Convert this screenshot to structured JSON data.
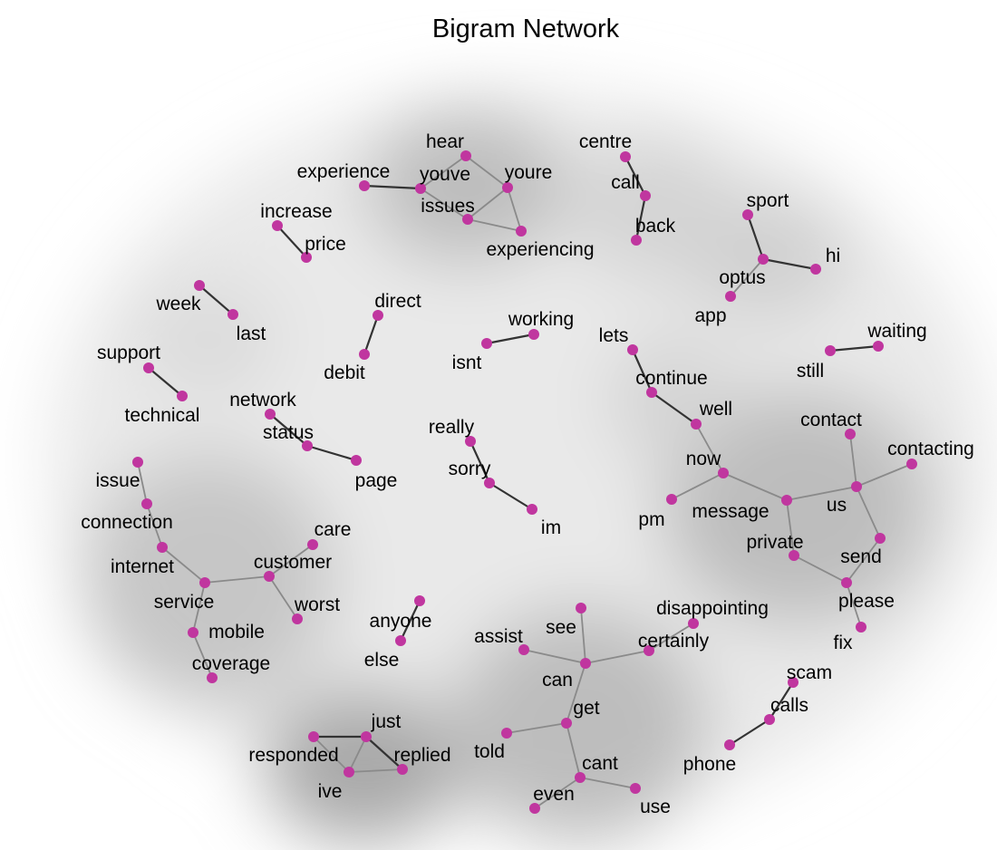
{
  "title": "Bigram Network",
  "colors": {
    "node": "#C0369F",
    "edge_strong": "#333333",
    "edge_weak": "#8a8a8a",
    "background": "#ffffff",
    "halo": "#d8d8d8"
  },
  "nodes": [
    "hear",
    "experience",
    "youve",
    "youre",
    "issues",
    "experiencing",
    "centre",
    "call",
    "back",
    "increase",
    "price",
    "sport",
    "optus",
    "hi",
    "app",
    "week",
    "last",
    "direct",
    "debit",
    "working",
    "isnt",
    "support",
    "technical",
    "network",
    "status",
    "page",
    "waiting",
    "still",
    "lets",
    "continue",
    "well",
    "now",
    "message",
    "pm",
    "us",
    "contact",
    "contacting",
    "private",
    "send",
    "please",
    "fix",
    "really",
    "sorry",
    "im",
    "issue",
    "connection",
    "internet",
    "service",
    "customer",
    "care",
    "worst",
    "mobile",
    "coverage",
    "anyone",
    "else",
    "disappointing",
    "certainly",
    "see",
    "assist",
    "can",
    "get",
    "told",
    "cant",
    "even",
    "use",
    "scam",
    "calls",
    "phone",
    "just",
    "responded",
    "replied",
    "ive"
  ],
  "edges": [
    [
      "experience",
      "youve"
    ],
    [
      "youve",
      "hear"
    ],
    [
      "hear",
      "youre"
    ],
    [
      "youve",
      "issues"
    ],
    [
      "youre",
      "issues"
    ],
    [
      "issues",
      "experiencing"
    ],
    [
      "youre",
      "experiencing"
    ],
    [
      "centre",
      "call"
    ],
    [
      "call",
      "back"
    ],
    [
      "increase",
      "price"
    ],
    [
      "sport",
      "optus"
    ],
    [
      "optus",
      "hi"
    ],
    [
      "optus",
      "app"
    ],
    [
      "week",
      "last"
    ],
    [
      "direct",
      "debit"
    ],
    [
      "isnt",
      "working"
    ],
    [
      "support",
      "technical"
    ],
    [
      "network",
      "status"
    ],
    [
      "status",
      "page"
    ],
    [
      "still",
      "waiting"
    ],
    [
      "lets",
      "continue"
    ],
    [
      "continue",
      "well"
    ],
    [
      "well",
      "now"
    ],
    [
      "now",
      "message"
    ],
    [
      "now",
      "pm"
    ],
    [
      "message",
      "us"
    ],
    [
      "contact",
      "us"
    ],
    [
      "us",
      "contacting"
    ],
    [
      "message",
      "private"
    ],
    [
      "us",
      "send"
    ],
    [
      "private",
      "please"
    ],
    [
      "send",
      "please"
    ],
    [
      "please",
      "fix"
    ],
    [
      "really",
      "sorry"
    ],
    [
      "sorry",
      "im"
    ],
    [
      "issue",
      "connection"
    ],
    [
      "connection",
      "internet"
    ],
    [
      "internet",
      "service"
    ],
    [
      "service",
      "customer"
    ],
    [
      "customer",
      "care"
    ],
    [
      "customer",
      "worst"
    ],
    [
      "service",
      "mobile"
    ],
    [
      "mobile",
      "coverage"
    ],
    [
      "anyone",
      "else"
    ],
    [
      "certainly",
      "disappointing"
    ],
    [
      "see",
      "can"
    ],
    [
      "assist",
      "can"
    ],
    [
      "can",
      "certainly"
    ],
    [
      "can",
      "get"
    ],
    [
      "get",
      "told"
    ],
    [
      "get",
      "cant"
    ],
    [
      "cant",
      "even"
    ],
    [
      "cant",
      "use"
    ],
    [
      "scam",
      "calls"
    ],
    [
      "calls",
      "phone"
    ],
    [
      "responded",
      "just"
    ],
    [
      "just",
      "replied"
    ],
    [
      "just",
      "ive"
    ],
    [
      "responded",
      "ive"
    ],
    [
      "ive",
      "replied"
    ]
  ]
}
